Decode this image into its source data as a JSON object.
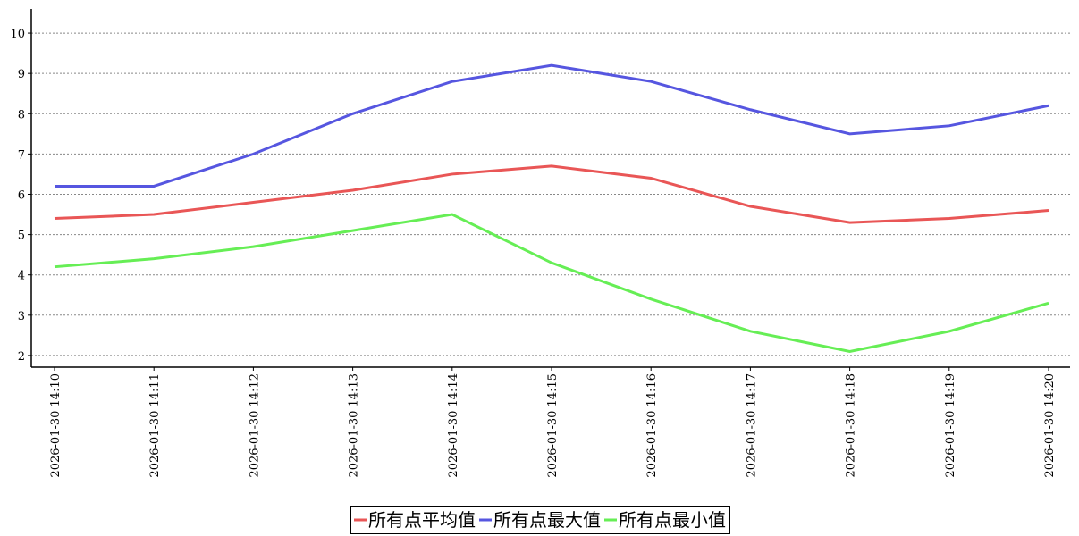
{
  "chart_data": {
    "type": "line",
    "categories": [
      "2026-01-30 14:10",
      "2026-01-30 14:11",
      "2026-01-30 14:12",
      "2026-01-30 14:13",
      "2026-01-30 14:14",
      "2026-01-30 14:15",
      "2026-01-30 14:16",
      "2026-01-30 14:17",
      "2026-01-30 14:18",
      "2026-01-30 14:19",
      "2026-01-30 14:20"
    ],
    "series": [
      {
        "name": "所有点平均值",
        "color": "#e95656",
        "values": [
          5.4,
          5.5,
          5.8,
          6.1,
          6.5,
          6.7,
          6.4,
          5.7,
          5.3,
          5.4,
          5.6
        ]
      },
      {
        "name": "所有点最大值",
        "color": "#5656e0",
        "values": [
          6.2,
          6.2,
          7.0,
          8.0,
          8.8,
          9.2,
          8.8,
          8.1,
          7.5,
          7.7,
          8.2
        ]
      },
      {
        "name": "所有点最小值",
        "color": "#66ee55",
        "values": [
          4.2,
          4.4,
          4.7,
          5.1,
          5.5,
          4.3,
          3.4,
          2.6,
          2.1,
          2.6,
          3.3
        ]
      }
    ],
    "ylim": [
      1.71,
      10.6
    ],
    "yticks": [
      2,
      3,
      4,
      5,
      6,
      7,
      8,
      9,
      10
    ],
    "grid": true,
    "legend": "bottom"
  }
}
